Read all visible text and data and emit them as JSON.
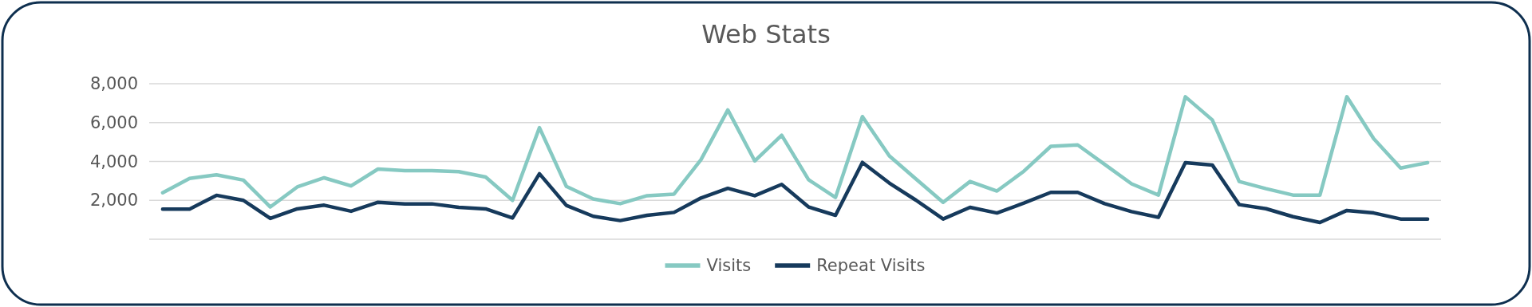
{
  "chart_data": {
    "type": "line",
    "title": "Web Stats",
    "categories": [
      null,
      null,
      null,
      null,
      null,
      null,
      null,
      null,
      null,
      null,
      null,
      null,
      null,
      null,
      null,
      null,
      null,
      null,
      null,
      null,
      null,
      null,
      null,
      null,
      null,
      null,
      null,
      null,
      null,
      null,
      null,
      null,
      null,
      null,
      null,
      null,
      null,
      null,
      null,
      null,
      null,
      null,
      null,
      null,
      null,
      null,
      null,
      null
    ],
    "series": [
      {
        "name": "Visits",
        "color": "#86c9c2",
        "values": [
          2390,
          3130,
          3310,
          3040,
          1660,
          2690,
          3160,
          2740,
          3610,
          3530,
          3530,
          3480,
          3200,
          2000,
          5740,
          2720,
          2070,
          1830,
          2240,
          2320,
          4090,
          6650,
          4030,
          5350,
          3060,
          2150,
          6310,
          4290,
          3090,
          1900,
          2970,
          2480,
          3500,
          4780,
          4850,
          3850,
          2850,
          2270,
          7330,
          6140,
          2970,
          2600,
          2270,
          2270,
          7330,
          5170,
          3660,
          3940
        ]
      },
      {
        "name": "Repeat Visits",
        "color": "#163a5c",
        "values": [
          1550,
          1550,
          2260,
          2000,
          1070,
          1560,
          1750,
          1440,
          1900,
          1820,
          1820,
          1640,
          1560,
          1090,
          3370,
          1740,
          1180,
          960,
          1230,
          1380,
          2120,
          2620,
          2240,
          2820,
          1660,
          1230,
          3950,
          2890,
          2000,
          1040,
          1640,
          1350,
          1860,
          2410,
          2410,
          1830,
          1420,
          1130,
          3940,
          3820,
          1780,
          1570,
          1160,
          860,
          1480,
          1350,
          1040,
          1040
        ]
      }
    ],
    "ylim": [
      0,
      8000
    ],
    "yticks": [
      {
        "value": 2000,
        "label": "2,000"
      },
      {
        "value": 4000,
        "label": "4,000"
      },
      {
        "value": 6000,
        "label": "6,000"
      },
      {
        "value": 8000,
        "label": "8,000"
      }
    ],
    "grid": "y",
    "legend": "bottom",
    "tick_labels": "y",
    "marker": "none",
    "line_style": "solid"
  }
}
